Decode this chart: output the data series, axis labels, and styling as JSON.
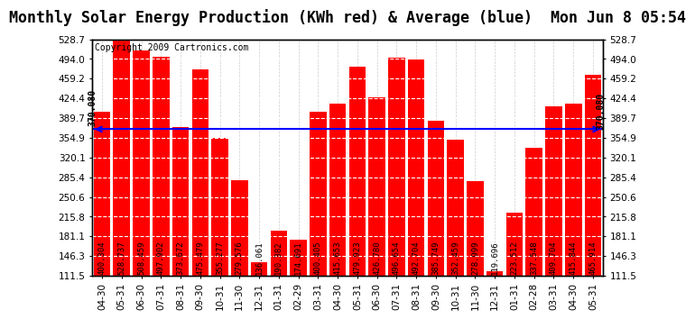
{
  "title": "Monthly Solar Energy Production (KWh red) & Average (blue)  Mon Jun 8 05:54",
  "copyright": "Copyright 2009 Cartronics.com",
  "categories": [
    "04-30",
    "05-31",
    "06-30",
    "07-31",
    "08-31",
    "09-30",
    "10-31",
    "11-30",
    "12-31",
    "01-31",
    "02-29",
    "03-31",
    "04-30",
    "05-31",
    "06-30",
    "07-31",
    "08-31",
    "09-30",
    "10-31",
    "11-30",
    "12-31",
    "01-31",
    "02-28",
    "03-31",
    "04-30",
    "05-31"
  ],
  "values": [
    400.304,
    528.737,
    508.459,
    497.902,
    373.672,
    475.479,
    355.277,
    279.576,
    136.061,
    190.382,
    174.691,
    400.405,
    415.653,
    479.923,
    426.78,
    496.654,
    492.704,
    385.749,
    352.459,
    278.999,
    119.696,
    223.512,
    337.548,
    409.704,
    415.844,
    465.914
  ],
  "average": 370.08,
  "bar_color": "#ff0000",
  "avg_color": "#0000ff",
  "background_color": "#ffffff",
  "ylim_min": 111.5,
  "ylim_max": 528.7,
  "yticks": [
    111.5,
    146.3,
    181.1,
    215.8,
    250.6,
    285.4,
    320.1,
    354.9,
    389.7,
    424.4,
    459.2,
    494.0,
    528.7
  ],
  "avg_label": "370.080",
  "title_fontsize": 12,
  "tick_fontsize": 7.5,
  "value_fontsize": 6.5,
  "copyright_fontsize": 7
}
